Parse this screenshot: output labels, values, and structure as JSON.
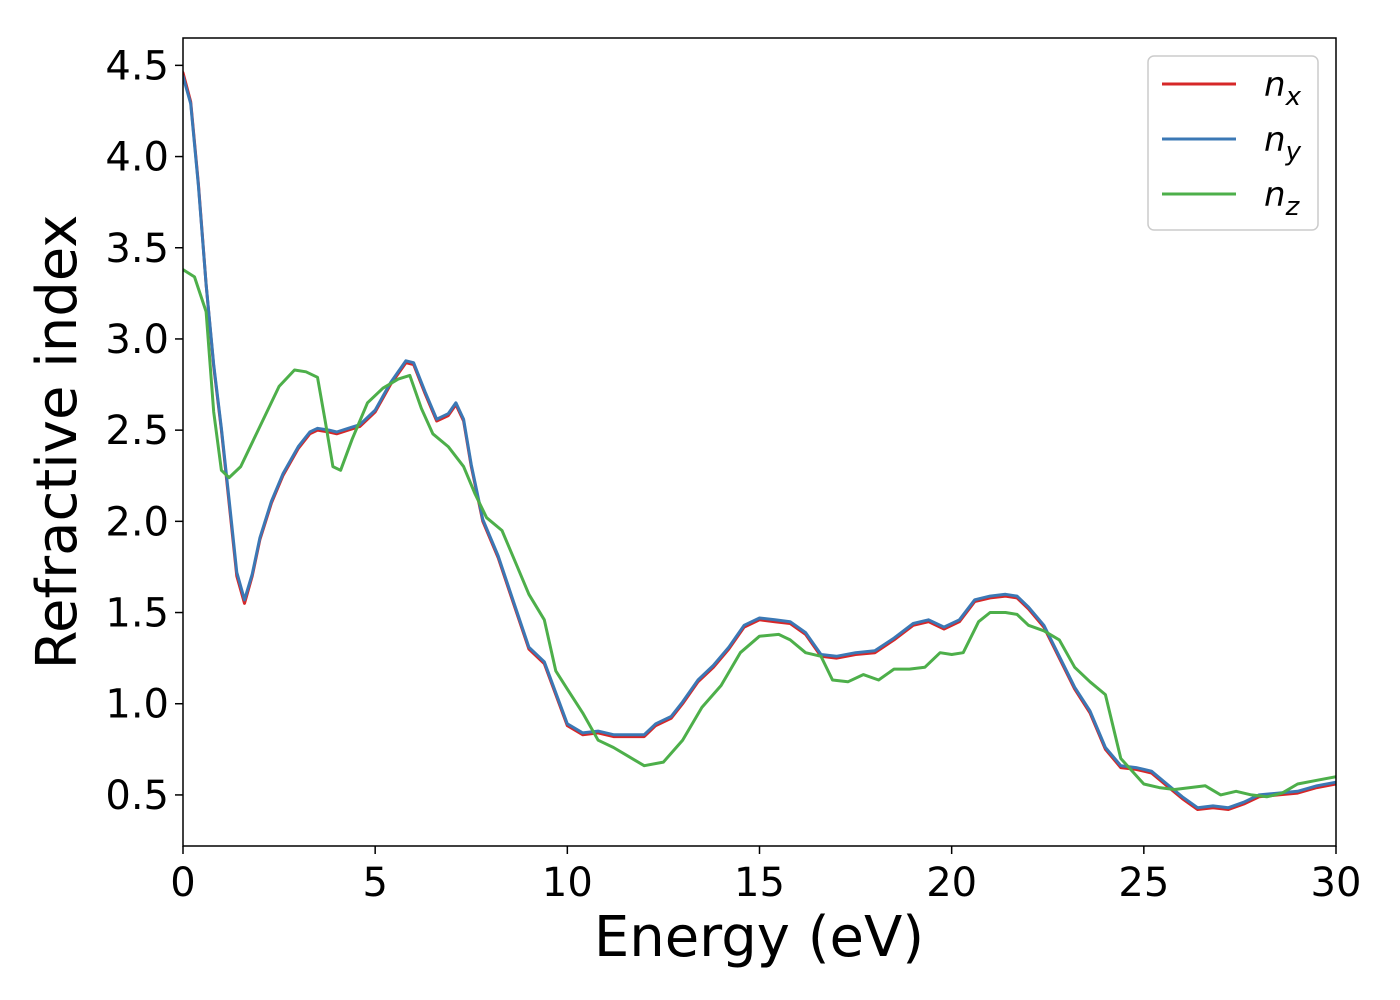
{
  "chart_data": {
    "type": "line",
    "title": "",
    "xlabel": "Energy (eV)",
    "ylabel": "Refractive index",
    "xlim": [
      0,
      30
    ],
    "ylim": [
      0.22,
      4.65
    ],
    "xticks": [
      0,
      5,
      10,
      15,
      20,
      25,
      30
    ],
    "xtick_labels": [
      "0",
      "5",
      "10",
      "15",
      "20",
      "25",
      "30"
    ],
    "yticks": [
      0.5,
      1.0,
      1.5,
      2.0,
      2.5,
      3.0,
      3.5,
      4.0,
      4.5
    ],
    "ytick_labels": [
      "0.5",
      "1.0",
      "1.5",
      "2.0",
      "2.5",
      "3.0",
      "3.5",
      "4.0",
      "4.5"
    ],
    "grid": false,
    "legend_position": "top-right",
    "series": [
      {
        "name": "n",
        "subscript": "x",
        "color": "#d62728",
        "x": [
          0,
          0.2,
          0.4,
          0.6,
          0.8,
          1.0,
          1.2,
          1.4,
          1.6,
          1.8,
          2.0,
          2.3,
          2.6,
          3.0,
          3.3,
          3.5,
          3.8,
          4.0,
          4.3,
          4.6,
          5.0,
          5.4,
          5.8,
          6.0,
          6.3,
          6.6,
          6.9,
          7.1,
          7.3,
          7.5,
          7.8,
          8.2,
          8.6,
          9.0,
          9.4,
          9.7,
          10.0,
          10.4,
          10.8,
          11.2,
          11.6,
          12.0,
          12.3,
          12.7,
          13.0,
          13.4,
          13.8,
          14.2,
          14.6,
          15.0,
          15.4,
          15.8,
          16.2,
          16.6,
          17.0,
          17.5,
          18.0,
          18.5,
          19.0,
          19.4,
          19.8,
          20.2,
          20.6,
          21.0,
          21.4,
          21.7,
          22.0,
          22.4,
          22.8,
          23.2,
          23.6,
          24.0,
          24.4,
          24.8,
          25.2,
          25.6,
          26.0,
          26.4,
          26.8,
          27.2,
          27.6,
          28.0,
          28.5,
          29.0,
          29.5,
          30.0
        ],
        "y": [
          4.46,
          4.3,
          3.85,
          3.3,
          2.85,
          2.5,
          2.1,
          1.7,
          1.55,
          1.7,
          1.9,
          2.1,
          2.25,
          2.4,
          2.48,
          2.5,
          2.49,
          2.48,
          2.5,
          2.52,
          2.6,
          2.75,
          2.87,
          2.86,
          2.7,
          2.55,
          2.58,
          2.64,
          2.55,
          2.3,
          2.0,
          1.8,
          1.55,
          1.3,
          1.22,
          1.05,
          0.88,
          0.83,
          0.84,
          0.82,
          0.82,
          0.82,
          0.88,
          0.92,
          1.0,
          1.12,
          1.2,
          1.3,
          1.42,
          1.46,
          1.45,
          1.44,
          1.38,
          1.26,
          1.25,
          1.27,
          1.28,
          1.35,
          1.43,
          1.45,
          1.41,
          1.45,
          1.56,
          1.58,
          1.59,
          1.58,
          1.52,
          1.42,
          1.25,
          1.08,
          0.95,
          0.75,
          0.65,
          0.64,
          0.62,
          0.55,
          0.48,
          0.42,
          0.43,
          0.42,
          0.45,
          0.49,
          0.5,
          0.51,
          0.54,
          0.56
        ]
      },
      {
        "name": "n",
        "subscript": "y",
        "color": "#3b78b5",
        "x": [
          0,
          0.2,
          0.4,
          0.6,
          0.8,
          1.0,
          1.2,
          1.4,
          1.6,
          1.8,
          2.0,
          2.3,
          2.6,
          3.0,
          3.3,
          3.5,
          3.8,
          4.0,
          4.3,
          4.6,
          5.0,
          5.4,
          5.8,
          6.0,
          6.3,
          6.6,
          6.9,
          7.1,
          7.3,
          7.5,
          7.8,
          8.2,
          8.6,
          9.0,
          9.4,
          9.7,
          10.0,
          10.4,
          10.8,
          11.2,
          11.6,
          12.0,
          12.3,
          12.7,
          13.0,
          13.4,
          13.8,
          14.2,
          14.6,
          15.0,
          15.4,
          15.8,
          16.2,
          16.6,
          17.0,
          17.5,
          18.0,
          18.5,
          19.0,
          19.4,
          19.8,
          20.2,
          20.6,
          21.0,
          21.4,
          21.7,
          22.0,
          22.4,
          22.8,
          23.2,
          23.6,
          24.0,
          24.4,
          24.8,
          25.2,
          25.6,
          26.0,
          26.4,
          26.8,
          27.2,
          27.6,
          28.0,
          28.5,
          29.0,
          29.5,
          30.0
        ],
        "y": [
          4.44,
          4.29,
          3.84,
          3.3,
          2.86,
          2.51,
          2.12,
          1.72,
          1.57,
          1.71,
          1.91,
          2.11,
          2.26,
          2.41,
          2.49,
          2.51,
          2.5,
          2.49,
          2.51,
          2.53,
          2.61,
          2.76,
          2.88,
          2.87,
          2.71,
          2.56,
          2.59,
          2.65,
          2.56,
          2.31,
          2.01,
          1.81,
          1.56,
          1.31,
          1.23,
          1.06,
          0.89,
          0.84,
          0.85,
          0.83,
          0.83,
          0.83,
          0.89,
          0.93,
          1.01,
          1.13,
          1.21,
          1.31,
          1.43,
          1.47,
          1.46,
          1.45,
          1.39,
          1.27,
          1.26,
          1.28,
          1.29,
          1.36,
          1.44,
          1.46,
          1.42,
          1.46,
          1.57,
          1.59,
          1.6,
          1.59,
          1.53,
          1.43,
          1.26,
          1.09,
          0.96,
          0.76,
          0.66,
          0.65,
          0.63,
          0.56,
          0.49,
          0.43,
          0.44,
          0.43,
          0.46,
          0.5,
          0.51,
          0.52,
          0.55,
          0.57
        ]
      },
      {
        "name": "n",
        "subscript": "z",
        "color": "#4daf4a",
        "x": [
          0,
          0.3,
          0.6,
          0.8,
          1.0,
          1.2,
          1.5,
          2.0,
          2.5,
          2.9,
          3.2,
          3.5,
          3.7,
          3.9,
          4.1,
          4.4,
          4.8,
          5.2,
          5.6,
          5.9,
          6.2,
          6.5,
          6.9,
          7.3,
          7.6,
          7.9,
          8.3,
          8.7,
          9.0,
          9.4,
          9.7,
          10.0,
          10.4,
          10.8,
          11.2,
          11.6,
          12.0,
          12.5,
          13.0,
          13.5,
          14.0,
          14.5,
          15.0,
          15.5,
          15.8,
          16.2,
          16.6,
          16.9,
          17.3,
          17.7,
          18.1,
          18.5,
          18.9,
          19.3,
          19.7,
          20.0,
          20.3,
          20.7,
          21.0,
          21.4,
          21.7,
          22.0,
          22.4,
          22.8,
          23.2,
          23.6,
          24.0,
          24.4,
          24.7,
          25.0,
          25.4,
          25.8,
          26.2,
          26.6,
          27.0,
          27.4,
          27.8,
          28.2,
          28.6,
          29.0,
          29.5,
          30.0
        ],
        "y": [
          3.38,
          3.34,
          3.15,
          2.6,
          2.28,
          2.24,
          2.3,
          2.52,
          2.74,
          2.83,
          2.82,
          2.79,
          2.55,
          2.3,
          2.28,
          2.45,
          2.65,
          2.73,
          2.78,
          2.8,
          2.62,
          2.48,
          2.41,
          2.3,
          2.15,
          2.02,
          1.95,
          1.75,
          1.6,
          1.46,
          1.18,
          1.08,
          0.95,
          0.8,
          0.76,
          0.71,
          0.66,
          0.68,
          0.8,
          0.98,
          1.1,
          1.28,
          1.37,
          1.38,
          1.35,
          1.28,
          1.26,
          1.13,
          1.12,
          1.16,
          1.13,
          1.19,
          1.19,
          1.2,
          1.28,
          1.27,
          1.28,
          1.45,
          1.5,
          1.5,
          1.49,
          1.43,
          1.4,
          1.35,
          1.2,
          1.12,
          1.05,
          0.7,
          0.63,
          0.56,
          0.54,
          0.53,
          0.54,
          0.55,
          0.5,
          0.52,
          0.5,
          0.49,
          0.51,
          0.56,
          0.58,
          0.6
        ]
      }
    ]
  }
}
